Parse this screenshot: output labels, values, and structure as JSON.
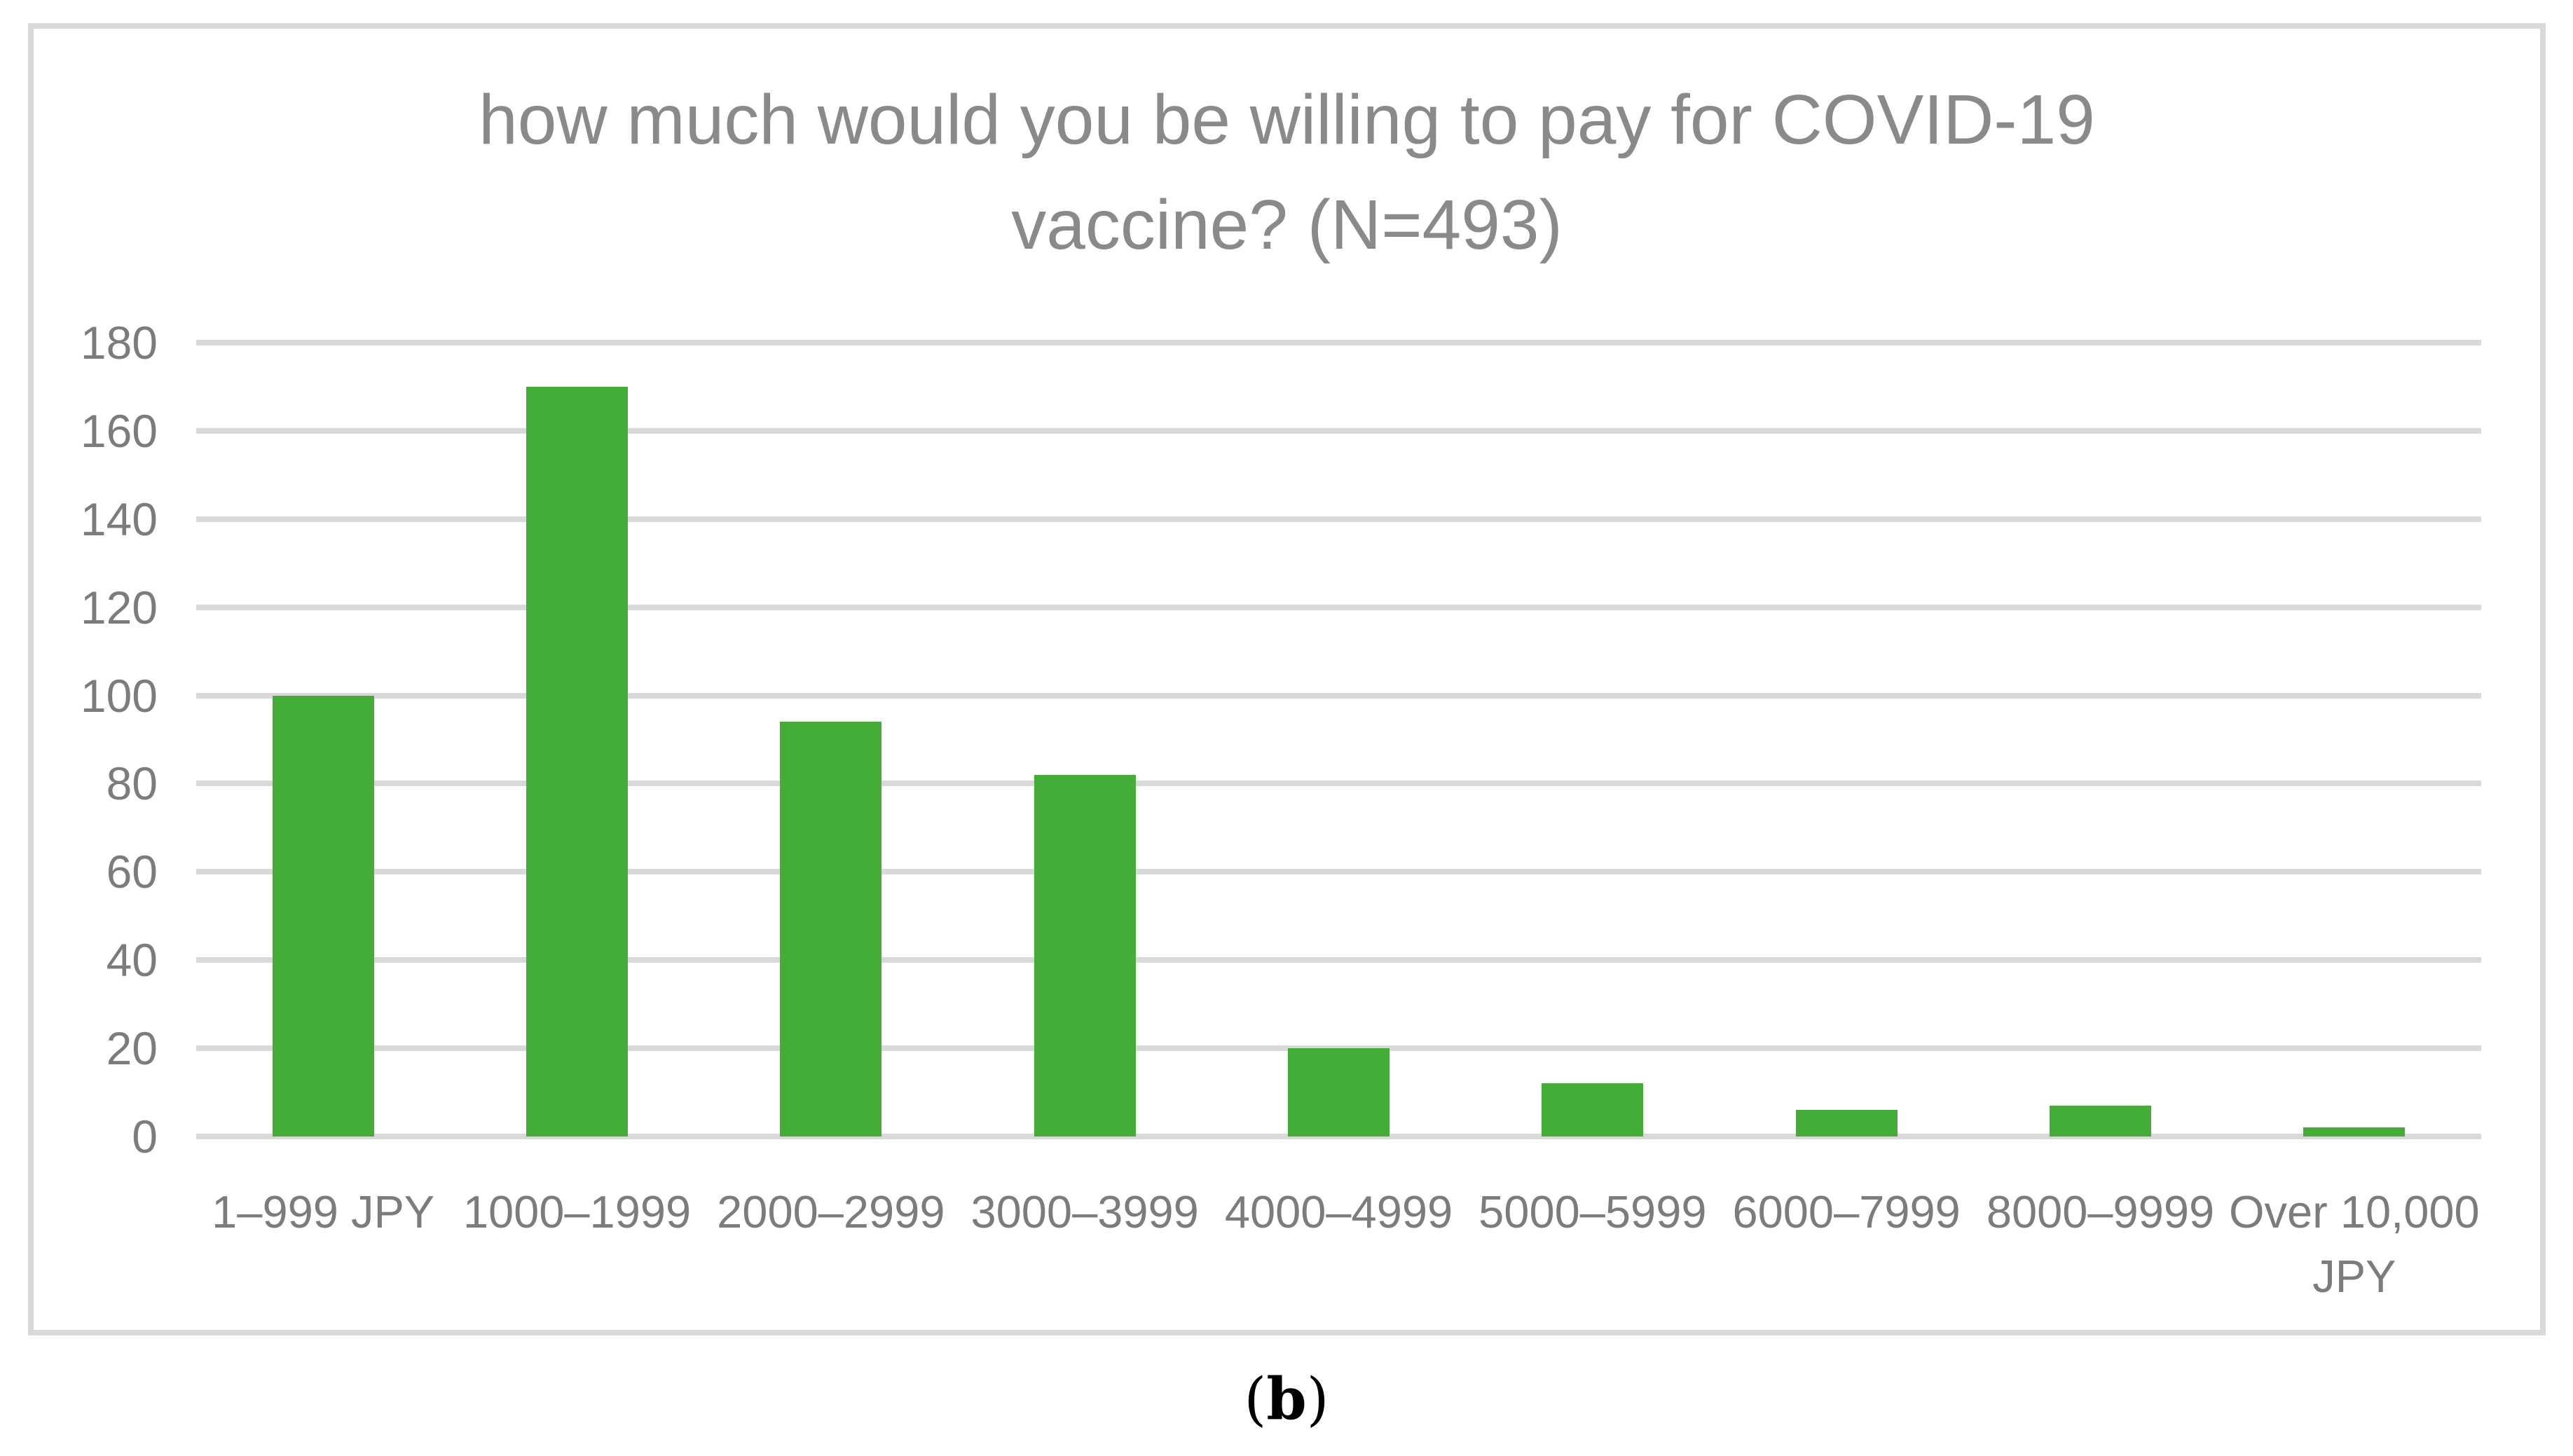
{
  "figure": {
    "caption_open": "(",
    "caption_letter": "b",
    "caption_close": ")"
  },
  "chart_data": {
    "type": "bar",
    "title": "how much would you be willing to pay for COVID-19 vaccine? (N=493)",
    "title_lines": [
      "how much would you be willing to pay for COVID-19",
      "vaccine? (N=493)"
    ],
    "n_total": 493,
    "categories": [
      "1–999 JPY",
      "1000–1999",
      "2000–2999",
      "3000–3999",
      "4000–4999",
      "5000–5999",
      "6000–7999",
      "8000–9999",
      "Over 10,000 JPY"
    ],
    "values": [
      100,
      170,
      94,
      82,
      20,
      12,
      6,
      7,
      2
    ],
    "xlabel": "",
    "ylabel": "",
    "ylim": [
      0,
      180
    ],
    "y_ticks": [
      0,
      20,
      40,
      60,
      80,
      100,
      120,
      140,
      160,
      180
    ],
    "grid": "horizontal-only",
    "legend": "none",
    "bar_gap_fraction": 0.6,
    "colors": {
      "bar": "#44ad3a",
      "gridline": "#d9d9d9",
      "frame_border": "#d9d9d9",
      "axis_text": "#7c7c7c",
      "title_text": "#8a8a8a",
      "caption_text": "#000000",
      "background": "#ffffff"
    }
  }
}
